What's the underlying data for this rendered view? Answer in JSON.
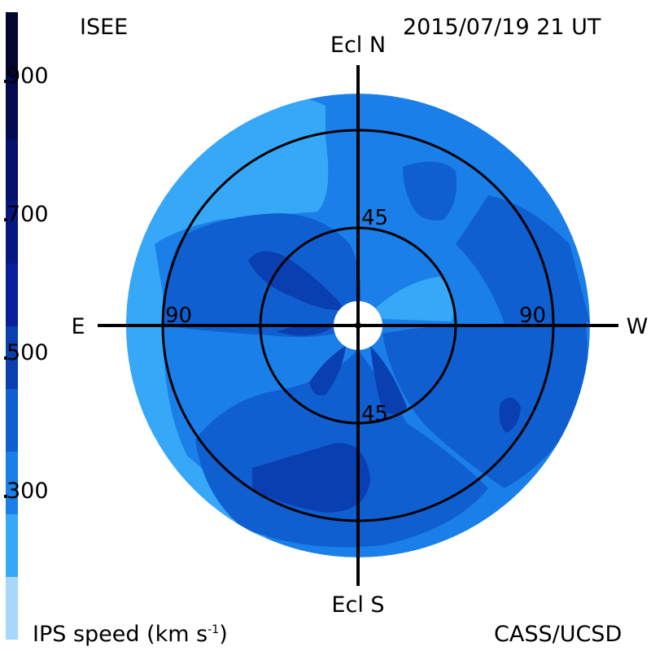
{
  "header": {
    "source": "ISEE",
    "datetime": "2015/07/19 21 UT"
  },
  "footer": {
    "quantity_label": "IPS speed (km s",
    "quantity_exponent": "-1",
    "quantity_close": ")",
    "credit": "CASS/UCSD"
  },
  "colorbar": {
    "colors": [
      "#a6d8fb",
      "#36a8f7",
      "#1a7fe8",
      "#0f5fd0",
      "#0a3fb2",
      "#071f9c",
      "#061784",
      "#04106a",
      "#030a52",
      "#02052f"
    ],
    "tick_labels": [
      "900",
      "700",
      "500",
      "300"
    ],
    "tick_values": [
      900,
      700,
      500,
      300
    ]
  },
  "chart_data": {
    "type": "heatmap",
    "projection": "sky map centred on the Sun, ecliptic coordinates",
    "axis_labels": {
      "north": "Ecl N",
      "south": "Ecl S",
      "east": "E",
      "west": "W"
    },
    "elongation_rings_deg": [
      45,
      90
    ],
    "ring_labels": [
      "45",
      "45",
      "90",
      "90"
    ],
    "speed_range_kms": [
      200,
      1000
    ],
    "speed_bins_kms": [
      200,
      300,
      400,
      500,
      600,
      700,
      800,
      900
    ],
    "dominant_speed_kms": 400,
    "regions": [
      {
        "area": "outer disk",
        "speed_kms": 400
      },
      {
        "area": "upper-left lobe near north pole",
        "speed_kms": 350
      },
      {
        "area": "west low-speed patch",
        "speed_kms": 350
      },
      {
        "area": "central east band",
        "speed_kms": 500
      },
      {
        "area": "south-east wedge",
        "speed_kms": 500
      },
      {
        "area": "north-west arm",
        "speed_kms": 500
      },
      {
        "area": "inner dark streaks",
        "speed_kms": 600
      },
      {
        "area": "south-west dark region",
        "speed_kms": 600
      },
      {
        "area": "far-west small spot",
        "speed_kms": 600
      }
    ]
  }
}
